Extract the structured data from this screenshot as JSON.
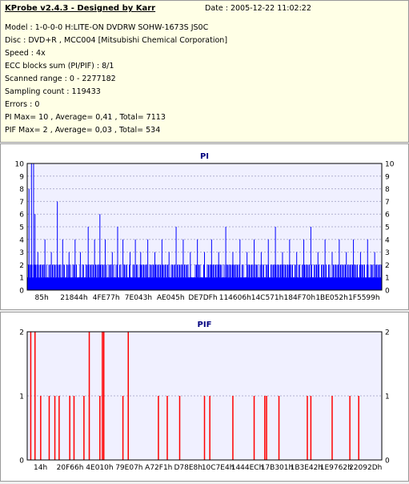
{
  "header": {
    "app_title": "KProbe v2.4.3 - Designed by Karr",
    "date_label": "Date :",
    "date_value": "2005-12-22 11:02:22"
  },
  "info_lines": [
    "Model : 1-0-0-0 H:LITE-ON DVDRW SOHW-1673S JS0C",
    "Disc : DVD+R , MCC004 [Mitsubishi Chemical Corporation]",
    "Speed : 4x",
    "ECC blocks sum (PI/PIF) : 8/1",
    "Scanned range : 0 - 2277182",
    "Sampling count : 119433",
    "Errors : 0",
    "PI Max= 10 , Average= 0,41 , Total= 7113",
    "PIF Max= 2 , Average= 0,03 , Total= 534"
  ],
  "colors": {
    "pi_bars": "#0000ff",
    "pif_bars": "#ff0000",
    "plot_bg": "#f0f0ff",
    "title": "#000080"
  },
  "chart_data": [
    {
      "type": "bar",
      "title": "PI",
      "ylim": [
        0,
        10
      ],
      "y_ticks": [
        0,
        1,
        2,
        3,
        4,
        5,
        6,
        7,
        8,
        9,
        10
      ],
      "x_tick_labels": [
        "85h",
        "21844h",
        "4FE77h",
        "7E043h",
        "AE045h",
        "DE7DFh",
        "114606h",
        "14C571h",
        "184F70h",
        "1BE052h",
        "1F5599h"
      ],
      "baseline_value": 1,
      "band_value": 2,
      "spikes": [
        [
          0.005,
          8
        ],
        [
          0.012,
          10
        ],
        [
          0.018,
          10
        ],
        [
          0.022,
          6
        ],
        [
          0.03,
          3
        ],
        [
          0.05,
          4
        ],
        [
          0.068,
          3
        ],
        [
          0.085,
          7
        ],
        [
          0.1,
          4
        ],
        [
          0.118,
          3
        ],
        [
          0.135,
          4
        ],
        [
          0.15,
          3
        ],
        [
          0.172,
          5
        ],
        [
          0.19,
          4
        ],
        [
          0.205,
          6
        ],
        [
          0.22,
          4
        ],
        [
          0.24,
          3
        ],
        [
          0.255,
          5
        ],
        [
          0.27,
          4
        ],
        [
          0.29,
          3
        ],
        [
          0.305,
          4
        ],
        [
          0.32,
          3
        ],
        [
          0.34,
          4
        ],
        [
          0.36,
          3
        ],
        [
          0.38,
          4
        ],
        [
          0.4,
          3
        ],
        [
          0.42,
          5
        ],
        [
          0.44,
          4
        ],
        [
          0.46,
          3
        ],
        [
          0.48,
          4
        ],
        [
          0.5,
          3
        ],
        [
          0.52,
          4
        ],
        [
          0.54,
          3
        ],
        [
          0.56,
          5
        ],
        [
          0.58,
          3
        ],
        [
          0.6,
          4
        ],
        [
          0.62,
          3
        ],
        [
          0.64,
          4
        ],
        [
          0.66,
          3
        ],
        [
          0.68,
          4
        ],
        [
          0.7,
          5
        ],
        [
          0.72,
          3
        ],
        [
          0.74,
          4
        ],
        [
          0.76,
          3
        ],
        [
          0.78,
          4
        ],
        [
          0.8,
          5
        ],
        [
          0.82,
          3
        ],
        [
          0.84,
          4
        ],
        [
          0.86,
          3
        ],
        [
          0.88,
          4
        ],
        [
          0.9,
          3
        ],
        [
          0.92,
          4
        ],
        [
          0.94,
          3
        ],
        [
          0.96,
          4
        ],
        [
          0.98,
          3
        ]
      ]
    },
    {
      "type": "bar",
      "title": "PIF",
      "ylim": [
        0,
        2
      ],
      "y_ticks": [
        0,
        1,
        2
      ],
      "x_tick_labels": [
        "14h",
        "20F66h",
        "4E010h",
        "79E07h",
        "A72F1h",
        "D78E8h",
        "10C7E4h",
        "1444ECh",
        "17B301h",
        "1B3E42h",
        "1E9762h",
        "22092Dh"
      ],
      "spikes": [
        [
          0.01,
          2
        ],
        [
          0.022,
          2
        ],
        [
          0.038,
          1
        ],
        [
          0.062,
          1
        ],
        [
          0.078,
          1
        ],
        [
          0.09,
          1
        ],
        [
          0.12,
          1
        ],
        [
          0.132,
          1
        ],
        [
          0.16,
          1
        ],
        [
          0.175,
          2
        ],
        [
          0.205,
          1
        ],
        [
          0.212,
          2
        ],
        [
          0.216,
          2
        ],
        [
          0.27,
          1
        ],
        [
          0.285,
          2
        ],
        [
          0.37,
          1
        ],
        [
          0.395,
          1
        ],
        [
          0.43,
          1
        ],
        [
          0.5,
          1
        ],
        [
          0.515,
          1
        ],
        [
          0.58,
          1
        ],
        [
          0.64,
          1
        ],
        [
          0.67,
          1
        ],
        [
          0.675,
          1
        ],
        [
          0.71,
          1
        ],
        [
          0.79,
          1
        ],
        [
          0.8,
          1
        ],
        [
          0.86,
          1
        ],
        [
          0.91,
          1
        ],
        [
          0.935,
          1
        ]
      ]
    }
  ]
}
